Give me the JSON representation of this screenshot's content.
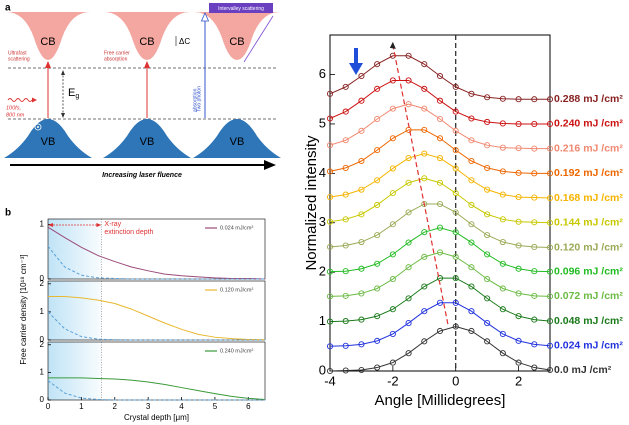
{
  "diagram": {
    "panel_label": "a",
    "columns": [
      {
        "cb": "CB",
        "vb": "VB",
        "process": [
          "Ultrafast",
          "scattering"
        ]
      },
      {
        "cb": "CB",
        "vb": "VB",
        "process": [
          "Free carrier",
          "absorption"
        ]
      },
      {
        "cb": "CB",
        "vb": "VB",
        "process": [
          "Two photon",
          "absorption"
        ]
      }
    ],
    "gap_label": "E",
    "gap_subscript": "g",
    "pulse": [
      "100fs,",
      "800 nm"
    ],
    "delta_label": "ΔC",
    "intervalley": "Intervalley scattering",
    "fluence_arrow": "Increasing laser fluence"
  },
  "chart_data": [
    {
      "type": "line",
      "panel_label": "b",
      "xlim": [
        0,
        6.5
      ],
      "ylim": [
        0,
        1.1
      ],
      "yticks": [
        0,
        1
      ],
      "x": [
        0,
        0.5,
        1,
        1.5,
        2,
        2.5,
        3,
        3.5,
        4,
        4.5,
        5,
        5.5,
        6,
        6.5
      ],
      "legend": "upper right",
      "extinction_depth": 1.6,
      "annotation": [
        "X-ray",
        "extinction depth"
      ],
      "series": [
        {
          "name": "0.024 mJ/cm²",
          "color": "#9b4a7a",
          "values": [
            0.95,
            0.76,
            0.58,
            0.43,
            0.32,
            0.22,
            0.15,
            0.09,
            0.06,
            0.04,
            0.02,
            0.01,
            0.01,
            0
          ]
        },
        {
          "color": "#5aa0d8",
          "dashed": true,
          "values": [
            0.6,
            0.22,
            0.07,
            0.02,
            0.01,
            0,
            0,
            0,
            0,
            0,
            0,
            0,
            0,
            0
          ]
        }
      ]
    },
    {
      "type": "line",
      "xlim": [
        0,
        6.5
      ],
      "ylim": [
        0,
        2.1
      ],
      "yticks": [
        0,
        1,
        2
      ],
      "x": [
        0,
        0.5,
        1,
        1.5,
        2,
        2.5,
        3,
        3.5,
        4,
        4.5,
        5,
        5.5,
        6,
        6.5
      ],
      "legend": "upper right",
      "extinction_depth": 1.6,
      "y_label": "Free carrier density [10¹⁸ cm⁻³]",
      "series": [
        {
          "name": "0.120 mJ/cm²",
          "color": "#e8b830",
          "values": [
            1.55,
            1.55,
            1.5,
            1.42,
            1.3,
            1.1,
            0.85,
            0.6,
            0.38,
            0.2,
            0.1,
            0.05,
            0.02,
            0.01
          ]
        },
        {
          "color": "#5aa0d8",
          "dashed": true,
          "values": [
            1.0,
            0.4,
            0.12,
            0.03,
            0.01,
            0,
            0,
            0,
            0,
            0,
            0,
            0,
            0,
            0
          ]
        }
      ]
    },
    {
      "type": "line",
      "xlim": [
        0,
        6.5
      ],
      "ylim": [
        0,
        2.1
      ],
      "yticks": [
        0,
        1,
        2
      ],
      "xticks": [
        0,
        1,
        2,
        3,
        4,
        5,
        6
      ],
      "x": [
        0,
        0.5,
        1,
        1.5,
        2,
        2.5,
        3,
        3.5,
        4,
        4.5,
        5,
        5.5,
        6,
        6.5
      ],
      "legend": "upper right",
      "extinction_depth": 1.6,
      "x_label": "Crystal depth [μm]",
      "series": [
        {
          "name": "0.240 mJ/cm²",
          "color": "#3a9a3a",
          "values": [
            0.8,
            0.8,
            0.8,
            0.78,
            0.76,
            0.72,
            0.65,
            0.56,
            0.45,
            0.34,
            0.23,
            0.13,
            0.06,
            0.02
          ]
        },
        {
          "color": "#5aa0d8",
          "dashed": true,
          "values": [
            0.7,
            0.25,
            0.07,
            0.02,
            0,
            0,
            0,
            0,
            0,
            0,
            0,
            0,
            0,
            0
          ]
        }
      ]
    },
    {
      "type": "line",
      "x_label": "Angle [Millidegrees]",
      "y_label": "Normalized intensity",
      "xlim": [
        -4,
        3
      ],
      "ylim": [
        0,
        6.8
      ],
      "xticks": [
        -4,
        -2,
        0,
        2
      ],
      "yticks": [
        0,
        1,
        2,
        3,
        4,
        5,
        6
      ],
      "markers": true,
      "end_labels": true,
      "vlines": [
        {
          "x": 0,
          "color": "#222222"
        }
      ],
      "guide": {
        "x": [
          -0.25,
          -2.0
        ],
        "y": [
          0.95,
          6.6
        ],
        "color": "#e03030"
      },
      "x": [
        -4,
        -3.5,
        -3,
        -2.5,
        -2,
        -1.5,
        -1,
        -0.5,
        0,
        0.5,
        1,
        1.5,
        2,
        2.5,
        3
      ],
      "series": [
        {
          "name": "0.0 mJ /cm²",
          "color": "#333333",
          "values": [
            0,
            0.01,
            0.02,
            0.07,
            0.17,
            0.36,
            0.6,
            0.81,
            0.9,
            0.81,
            0.6,
            0.36,
            0.17,
            0.07,
            0.02
          ]
        },
        {
          "name": "0.024 mJ /cm²",
          "color": "#2233dd",
          "values": [
            0.5,
            0.51,
            0.54,
            0.61,
            0.75,
            0.97,
            1.21,
            1.38,
            1.38,
            1.21,
            0.97,
            0.75,
            0.61,
            0.54,
            0.51
          ]
        },
        {
          "name": "0.048 mJ /cm²",
          "color": "#1a7a1a",
          "values": [
            1,
            1.01,
            1.04,
            1.11,
            1.25,
            1.47,
            1.71,
            1.88,
            1.88,
            1.71,
            1.47,
            1.25,
            1.11,
            1.04,
            1.01
          ]
        },
        {
          "name": "0.072 mJ /cm²",
          "color": "#6cbb44",
          "values": [
            1.51,
            1.52,
            1.57,
            1.67,
            1.86,
            2.1,
            2.31,
            2.4,
            2.31,
            2.1,
            1.86,
            1.67,
            1.57,
            1.52,
            1.51
          ]
        },
        {
          "name": "0.096 mJ /cm²",
          "color": "#22bb22",
          "values": [
            2.01,
            2.02,
            2.07,
            2.17,
            2.36,
            2.6,
            2.81,
            2.9,
            2.81,
            2.6,
            2.36,
            2.17,
            2.07,
            2.02,
            2.01
          ]
        },
        {
          "name": "0.120 mJ /cm²",
          "color": "#99aa55",
          "values": [
            2.51,
            2.54,
            2.61,
            2.75,
            2.97,
            3.21,
            3.38,
            3.38,
            3.21,
            2.97,
            2.75,
            2.61,
            2.54,
            2.51,
            2.5
          ]
        },
        {
          "name": "0.144 mJ /cm²",
          "color": "#c8c800",
          "values": [
            3.02,
            3.07,
            3.17,
            3.36,
            3.6,
            3.81,
            3.9,
            3.81,
            3.6,
            3.36,
            3.17,
            3.07,
            3.02,
            3.01,
            3
          ]
        },
        {
          "name": "0.168 mJ /cm²",
          "color": "#f5b400",
          "values": [
            3.52,
            3.57,
            3.67,
            3.86,
            4.1,
            4.31,
            4.4,
            4.31,
            4.1,
            3.86,
            3.67,
            3.57,
            3.52,
            3.51,
            3.5
          ]
        },
        {
          "name": "0.192 mJ /cm²",
          "color": "#ee6600",
          "values": [
            4.04,
            4.11,
            4.25,
            4.47,
            4.71,
            4.88,
            4.88,
            4.71,
            4.47,
            4.25,
            4.11,
            4.04,
            4.01,
            4,
            4
          ]
        },
        {
          "name": "0.216 mJ /cm²",
          "color": "#f08870",
          "values": [
            4.57,
            4.67,
            4.86,
            5.1,
            5.31,
            5.4,
            5.31,
            5.1,
            4.86,
            4.67,
            4.57,
            4.52,
            4.51,
            4.5,
            4.5
          ]
        },
        {
          "name": "0.240 mJ /cm²",
          "color": "#cc1111",
          "values": [
            5.11,
            5.25,
            5.47,
            5.71,
            5.88,
            5.88,
            5.71,
            5.47,
            5.25,
            5.11,
            5.04,
            5.01,
            5,
            5,
            5
          ]
        },
        {
          "name": "0.288 mJ /cm²",
          "color": "#882222",
          "values": [
            5.61,
            5.75,
            5.97,
            6.21,
            6.38,
            6.38,
            6.21,
            5.97,
            5.75,
            5.61,
            5.54,
            5.51,
            5.5,
            5.5,
            5.5
          ]
        }
      ]
    }
  ]
}
